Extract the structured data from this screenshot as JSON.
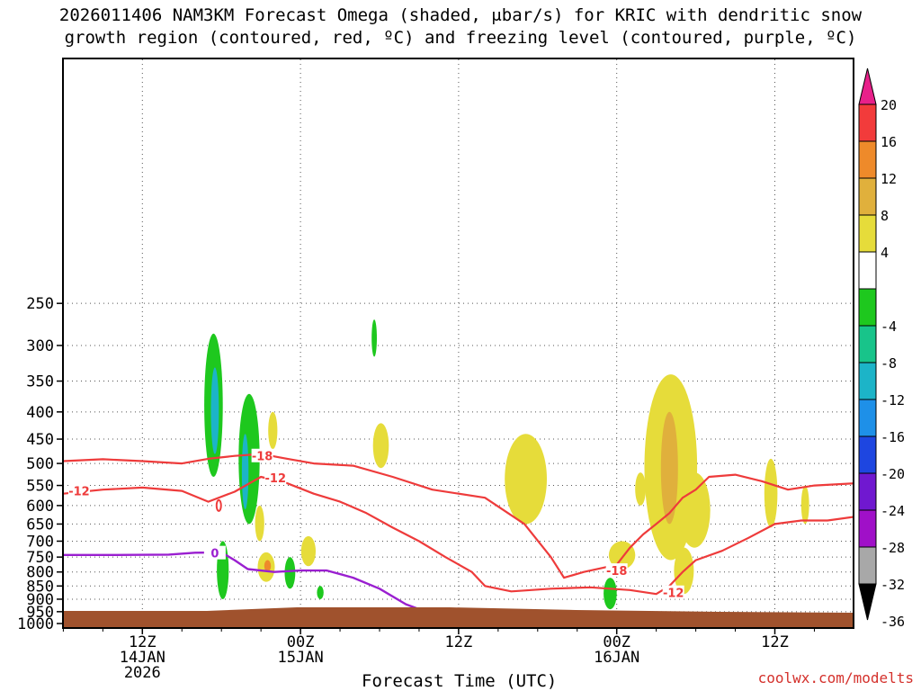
{
  "header": {
    "title_line1": "2026011406 NAM3KM Forecast Omega (shaded, μbar/s) for KRIC with dendritic snow",
    "title_line2": "growth region (contoured, red, ºC) and freezing level (contoured, purple, ºC)"
  },
  "footer": {
    "xlabel": "Forecast Time (UTC)",
    "watermark": "coolwx.com/modelts"
  },
  "colors": {
    "isotherm": "#ee3b3b",
    "freezing": "#9a1fd0",
    "terrain": "#a0522d",
    "grid": "#555555"
  },
  "chart_data": {
    "type": "heatmap",
    "model": "NAM3KM",
    "station": "KRIC",
    "init": "2026011406",
    "y_axis": {
      "ticks": [
        250,
        300,
        350,
        400,
        450,
        500,
        550,
        600,
        650,
        700,
        750,
        800,
        850,
        900,
        950,
        1000
      ],
      "scale": "log",
      "inverted": true
    },
    "x_axis": {
      "ticks": [
        {
          "hour": 6,
          "lines": [
            "12Z",
            "14JAN",
            "2026"
          ]
        },
        {
          "hour": 18,
          "lines": [
            "00Z",
            "15JAN"
          ]
        },
        {
          "hour": 30,
          "lines": [
            "12Z"
          ]
        },
        {
          "hour": 42,
          "lines": [
            "00Z",
            "16JAN"
          ]
        },
        {
          "hour": 54,
          "lines": [
            "12Z"
          ]
        }
      ]
    },
    "grid": true,
    "colorbar": {
      "units": "μbar/s",
      "levels": [
        "20",
        "16",
        "12",
        "8",
        "4",
        "-4",
        "-8",
        "-12",
        "-16",
        "-20",
        "-24",
        "-28",
        "-32",
        "-36"
      ],
      "bands": [
        {
          "range": [
            16,
            20
          ],
          "color": "#f23b3b"
        },
        {
          "range": [
            12,
            16
          ],
          "color": "#ee8a2a"
        },
        {
          "range": [
            8,
            12
          ],
          "color": "#e0b03c"
        },
        {
          "range": [
            4,
            8
          ],
          "color": "#e6dc3a"
        },
        {
          "range": [
            -4,
            4
          ],
          "color": "#ffffff"
        },
        {
          "range": [
            -8,
            -4
          ],
          "color": "#1ec81e"
        },
        {
          "range": [
            -12,
            -8
          ],
          "color": "#18c48a"
        },
        {
          "range": [
            -16,
            -12
          ],
          "color": "#1cb4c8"
        },
        {
          "range": [
            -20,
            -16
          ],
          "color": "#1e90e8"
        },
        {
          "range": [
            -24,
            -20
          ],
          "color": "#1e46e0"
        },
        {
          "range": [
            -28,
            -24
          ],
          "color": "#7018d0"
        },
        {
          "range": [
            -32,
            -28
          ],
          "color": "#a010c8"
        },
        {
          "range": [
            -36,
            -32
          ],
          "color": "#a8a8a8"
        }
      ]
    },
    "omega_areas": [
      {
        "h": 11.4,
        "p": [
          285,
          530
        ],
        "w": 1.4,
        "value": -6
      },
      {
        "h": 11.5,
        "p": [
          330,
          480
        ],
        "w": 0.6,
        "value": -14
      },
      {
        "h": 14.1,
        "p": [
          370,
          650
        ],
        "w": 1.6,
        "value": -6
      },
      {
        "h": 13.8,
        "p": [
          440,
          610
        ],
        "w": 0.5,
        "value": -13
      },
      {
        "h": 12.1,
        "p": [
          700,
          900
        ],
        "w": 0.9,
        "value": -6
      },
      {
        "h": 15.4,
        "p": [
          735,
          835
        ],
        "w": 1.3,
        "value": 6
      },
      {
        "h": 15.5,
        "p": [
          760,
          800
        ],
        "w": 0.5,
        "value": 13
      },
      {
        "h": 17.2,
        "p": [
          750,
          860
        ],
        "w": 0.8,
        "value": -6
      },
      {
        "h": 18.6,
        "p": [
          685,
          780
        ],
        "w": 1.1,
        "value": 6
      },
      {
        "h": 14.9,
        "p": [
          600,
          700
        ],
        "w": 0.7,
        "value": 6
      },
      {
        "h": 15.9,
        "p": [
          400,
          470
        ],
        "w": 0.7,
        "value": 6
      },
      {
        "h": 19.5,
        "p": [
          850,
          900
        ],
        "w": 0.5,
        "value": -6
      },
      {
        "h": 23.6,
        "p": [
          268,
          315
        ],
        "w": 0.4,
        "value": -6
      },
      {
        "h": 24.1,
        "p": [
          420,
          510
        ],
        "w": 1.2,
        "value": 6
      },
      {
        "h": 35.1,
        "p": [
          440,
          650
        ],
        "w": 3.2,
        "value": 6
      },
      {
        "h": 41.5,
        "p": [
          820,
          940
        ],
        "w": 1.0,
        "value": -6
      },
      {
        "h": 42.4,
        "p": [
          700,
          790
        ],
        "w": 2.0,
        "value": 6
      },
      {
        "h": 43.8,
        "p": [
          520,
          600
        ],
        "w": 0.8,
        "value": 6
      },
      {
        "h": 46.1,
        "p": [
          340,
          760
        ],
        "w": 4.0,
        "value": 6
      },
      {
        "h": 47.9,
        "p": [
          520,
          720
        ],
        "w": 2.4,
        "value": 6
      },
      {
        "h": 46.0,
        "p": [
          400,
          650
        ],
        "w": 1.3,
        "value": 11
      },
      {
        "h": 47.1,
        "p": [
          720,
          880
        ],
        "w": 1.5,
        "value": 6
      },
      {
        "h": 53.7,
        "p": [
          490,
          660
        ],
        "w": 1.0,
        "value": 6
      },
      {
        "h": 56.3,
        "p": [
          550,
          650
        ],
        "w": 0.6,
        "value": 6
      }
    ],
    "isotherms": [
      {
        "label": "-18",
        "points": [
          [
            0,
            495
          ],
          [
            3,
            491
          ],
          [
            6,
            495
          ],
          [
            9,
            500
          ],
          [
            11,
            490
          ],
          [
            13,
            484
          ],
          [
            15,
            480
          ],
          [
            17,
            490
          ],
          [
            19,
            500
          ],
          [
            22,
            505
          ],
          [
            25,
            530
          ],
          [
            28,
            560
          ],
          [
            32,
            580
          ],
          [
            35,
            650
          ],
          [
            37,
            750
          ],
          [
            38,
            820
          ],
          [
            39.5,
            800
          ],
          [
            41,
            785
          ],
          [
            42,
            775
          ],
          [
            43,
            720
          ],
          [
            44,
            680
          ],
          [
            45,
            650
          ],
          [
            46,
            620
          ],
          [
            47,
            580
          ],
          [
            48,
            560
          ],
          [
            49,
            530
          ],
          [
            51,
            525
          ],
          [
            53,
            540
          ],
          [
            55,
            560
          ],
          [
            57,
            550
          ],
          [
            60,
            545
          ]
        ]
      },
      {
        "label": "-12",
        "points": [
          [
            0,
            570
          ],
          [
            3,
            560
          ],
          [
            6,
            555
          ],
          [
            9,
            563
          ],
          [
            11,
            590
          ],
          [
            13,
            565
          ],
          [
            15,
            530
          ],
          [
            17,
            545
          ],
          [
            19,
            570
          ],
          [
            21,
            590
          ],
          [
            23,
            620
          ],
          [
            25,
            660
          ],
          [
            27,
            700
          ],
          [
            29,
            750
          ],
          [
            31,
            800
          ],
          [
            32,
            850
          ],
          [
            34,
            870
          ],
          [
            37,
            860
          ],
          [
            40,
            855
          ],
          [
            43,
            865
          ],
          [
            45,
            880
          ],
          [
            46,
            850
          ],
          [
            47,
            800
          ],
          [
            48,
            760
          ],
          [
            50,
            730
          ],
          [
            52,
            690
          ],
          [
            54,
            650
          ],
          [
            56,
            640
          ],
          [
            58,
            640
          ],
          [
            60,
            630
          ]
        ]
      }
    ],
    "isotherm_labels": [
      {
        "label": "-18",
        "h": 15.1,
        "p": 484
      },
      {
        "label": "-12",
        "h": 16.1,
        "p": 532
      },
      {
        "label": "-12",
        "h": 1.2,
        "p": 563
      },
      {
        "label": "-18",
        "h": 42.0,
        "p": 795
      },
      {
        "label": "-12",
        "h": 46.3,
        "p": 875
      }
    ],
    "freezing_level": {
      "label": "0",
      "points": [
        [
          0,
          743
        ],
        [
          4,
          743
        ],
        [
          8,
          742
        ],
        [
          10,
          736
        ],
        [
          12,
          735
        ],
        [
          13,
          760
        ],
        [
          14,
          790
        ],
        [
          16,
          800
        ],
        [
          18,
          795
        ],
        [
          20,
          795
        ],
        [
          22,
          820
        ],
        [
          24,
          860
        ],
        [
          26,
          920
        ],
        [
          28,
          960
        ],
        [
          29,
          990
        ]
      ]
    },
    "freezing_label": {
      "label": "0",
      "h": 11.5,
      "p": 737
    },
    "freezing_segments": [
      [
        [
          36,
          990
        ],
        [
          38,
          985
        ],
        [
          40,
          990
        ]
      ],
      [
        [
          59,
          1000
        ],
        [
          60,
          990
        ]
      ]
    ],
    "isotherm_loop": {
      "h": 11.8,
      "p": 600,
      "rx": 2.5,
      "ry": 6
    }
  }
}
